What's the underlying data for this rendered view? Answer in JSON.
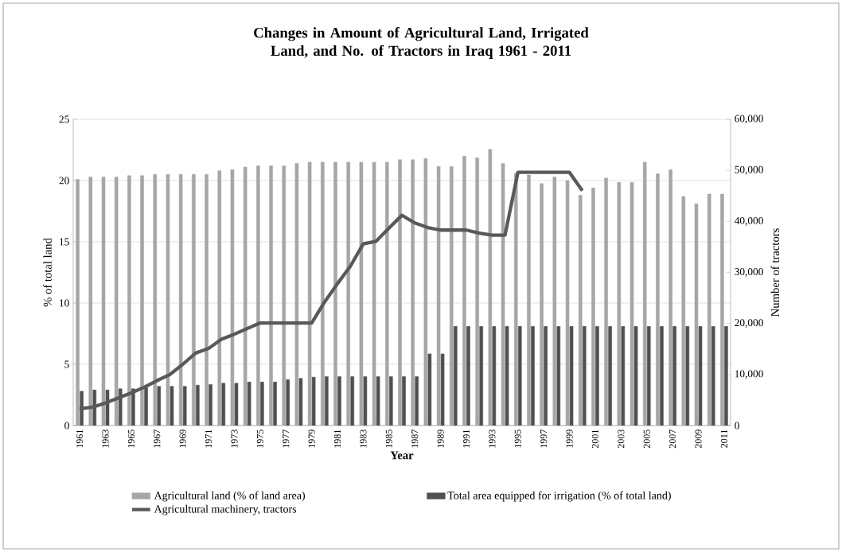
{
  "chart_data": {
    "type": "bar",
    "title": "Changes in Amount of Agricultural Land, Irrigated Land, and No. of Tractors in Iraq 1961 - 2011",
    "xlabel": "Year",
    "ylabel": "% of total land",
    "y2label": "Number of tractors",
    "categories": [
      "1961",
      null,
      "1963",
      null,
      "1965",
      null,
      "1967",
      null,
      "1969",
      null,
      "1971",
      null,
      "1973",
      null,
      "1975",
      null,
      "1977",
      null,
      "1979",
      null,
      "1981",
      null,
      "1983",
      null,
      "1985",
      null,
      "1987",
      null,
      "1989",
      null,
      "1991",
      null,
      "1993",
      null,
      "1995",
      null,
      "1997",
      null,
      "1999",
      null,
      "2001",
      null,
      "2003",
      null,
      "2005",
      null,
      "2007",
      null,
      "2009",
      null,
      "2011"
    ],
    "series": [
      {
        "name": "Agricultural land (% of land area)",
        "color": "#a6a6a6",
        "values": [
          20.1,
          20.3,
          20.3,
          20.3,
          20.4,
          20.4,
          20.5,
          20.5,
          20.5,
          20.5,
          20.5,
          20.8,
          20.9,
          21.1,
          21.2,
          21.2,
          21.2,
          21.4,
          21.5,
          21.5,
          21.5,
          21.5,
          21.5,
          21.5,
          21.5,
          21.7,
          21.7,
          21.8,
          21.15,
          21.15,
          22.0,
          21.85,
          22.55,
          21.4,
          20.6,
          20.45,
          19.75,
          20.3,
          20.0,
          18.8,
          19.4,
          20.2,
          19.85,
          19.85,
          21.5,
          20.55,
          20.9,
          18.7,
          18.1,
          18.9,
          18.9
        ]
      },
      {
        "name": "Total area equipped for irrigation (% of total land)",
        "color": "#505050",
        "values": [
          2.8,
          2.9,
          2.9,
          3.0,
          3.0,
          3.1,
          3.2,
          3.2,
          3.2,
          3.3,
          3.35,
          3.45,
          3.45,
          3.55,
          3.55,
          3.55,
          3.75,
          3.85,
          3.95,
          4.0,
          4.0,
          4.0,
          4.0,
          4.0,
          4.0,
          4.0,
          4.0,
          5.85,
          5.85,
          8.1,
          8.1,
          8.1,
          8.1,
          8.1,
          8.1,
          8.1,
          8.1,
          8.1,
          8.1,
          8.1,
          8.1,
          8.1,
          8.1,
          8.1,
          8.1,
          8.1,
          8.1,
          8.1,
          8.1,
          8.1,
          8.1
        ]
      },
      {
        "name": "Agricultural machinery, tractors",
        "type": "line",
        "axis": "y2",
        "color": "#595959",
        "values": [
          3300,
          3600,
          4400,
          5400,
          6400,
          7500,
          8800,
          10000,
          12000,
          14200,
          15100,
          16900,
          17900,
          19000,
          20100,
          20100,
          20100,
          20100,
          20100,
          24200,
          27800,
          31200,
          35600,
          36100,
          38700,
          41200,
          39700,
          38800,
          38300,
          38300,
          38300,
          37700,
          37300,
          37300,
          49600,
          49600,
          49600,
          49600,
          49600,
          46000,
          null,
          null,
          null,
          null,
          null,
          null,
          null,
          null,
          null,
          null,
          null
        ]
      }
    ],
    "ylim": [
      0,
      25
    ],
    "yticks": [
      0,
      5,
      10,
      15,
      20,
      25
    ],
    "y2lim": [
      0,
      60000
    ],
    "y2ticks": [
      {
        "value": 0,
        "label": "0"
      },
      {
        "value": 10000,
        "label": "10,000"
      },
      {
        "value": 20000,
        "label": "20,000"
      },
      {
        "value": 30000,
        "label": "30,000"
      },
      {
        "value": 40000,
        "label": "40,000"
      },
      {
        "value": 50000,
        "label": "50,000"
      },
      {
        "value": 60000,
        "label": "60,000"
      }
    ],
    "grid": "y",
    "legend": "bottom"
  }
}
